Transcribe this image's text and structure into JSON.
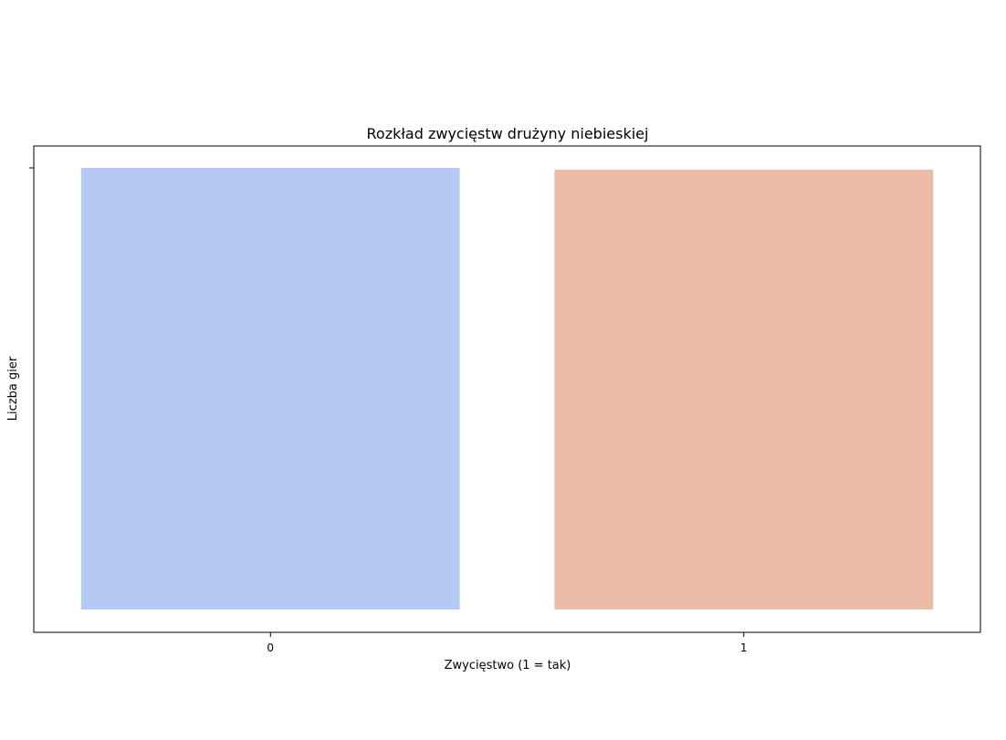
{
  "chart_data": {
    "type": "bar",
    "title": "Rozkład zwycięstw drużyny niebieskiej",
    "xlabel": "Zwycięstwo (1 = tak)",
    "ylabel": "Liczba gier",
    "categories": [
      "0",
      "1"
    ],
    "values": [
      4949,
      4930
    ],
    "ylim": [
      0,
      4949
    ],
    "y_tick_labels_shown": false,
    "grid": false,
    "legend": "none",
    "colors": [
      "#b5caf2",
      "#ecbca7"
    ]
  }
}
